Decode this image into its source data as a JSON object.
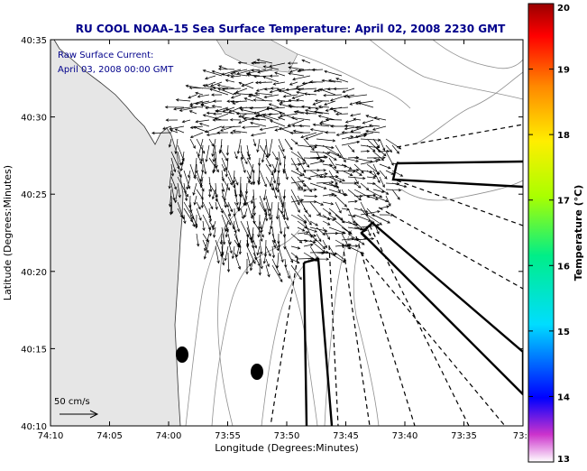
{
  "chart_data": {
    "type": "vector_field",
    "title": "RU COOL  NOAA–15  Sea Surface Temperature:  April 02, 2008 2230 GMT",
    "subtitle_line1": "Raw Surface Current:",
    "subtitle_line2": "April 03, 2008 00:00 GMT",
    "xlabel": "Longitude (Degrees:Minutes)",
    "ylabel": "Latitude (Degrees:Minutes)",
    "x_ticks": [
      "74:10",
      "74:05",
      "74:00",
      "73:55",
      "73:50",
      "73:45",
      "73:40",
      "73:35",
      "73:3"
    ],
    "y_ticks": [
      "40:35",
      "40:30",
      "40:25",
      "40:20",
      "40:15",
      "40:10"
    ],
    "x_range_deg_west": [
      74.1667,
      73.5
    ],
    "y_range_deg_north": [
      40.1667,
      40.5833
    ],
    "scale_label": "50 cm/s",
    "colorbar": {
      "label": "Temperature (°C)",
      "min": 13,
      "max": 20,
      "ticks": [
        "20",
        "19",
        "18",
        "17",
        "16",
        "15",
        "14",
        "13"
      ]
    },
    "colors": {
      "title": "#00008b",
      "subtitle": "#00008b",
      "land": "#e6e6e6",
      "ocean": "#ffffff",
      "contour": "#909090",
      "vectors": "#000000"
    }
  }
}
